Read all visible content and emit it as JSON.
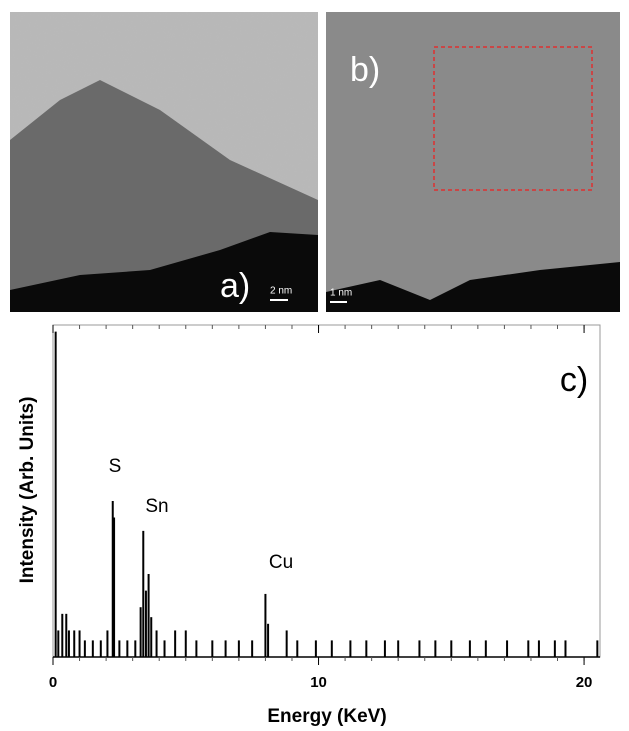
{
  "panels": {
    "a": {
      "label": "a)",
      "scale": "2 nm"
    },
    "b": {
      "label": "b)",
      "scale": "1 nm"
    }
  },
  "chart_data": {
    "type": "stick",
    "panel_label": "c)",
    "x_label": "Energy (KeV)",
    "y_label": "Intensity (Arb. Units)",
    "xlim": [
      0,
      20.6
    ],
    "ylim": [
      0,
      100
    ],
    "xticks": [
      0,
      10,
      20
    ],
    "color": "#000000",
    "annotations": [
      "S",
      "Sn",
      "Cu"
    ],
    "x": [
      0.1,
      0.2,
      0.35,
      0.5,
      0.6,
      0.8,
      1.0,
      1.2,
      1.5,
      1.8,
      2.05,
      2.25,
      2.3,
      2.5,
      2.8,
      3.1,
      3.3,
      3.4,
      3.5,
      3.6,
      3.7,
      3.9,
      4.2,
      4.6,
      5.0,
      5.4,
      6.0,
      6.5,
      7.0,
      7.5,
      8.0,
      8.1,
      8.8,
      9.2,
      9.9,
      10.5,
      11.2,
      11.8,
      12.5,
      13.0,
      13.8,
      14.4,
      15.0,
      15.7,
      16.3,
      17.1,
      17.9,
      18.3,
      18.9,
      19.3,
      20.5
    ],
    "values": [
      98,
      8,
      13,
      13,
      8,
      8,
      8,
      5,
      5,
      5,
      8,
      47,
      42,
      5,
      5,
      5,
      15,
      38,
      20,
      25,
      12,
      8,
      5,
      8,
      8,
      5,
      5,
      5,
      5,
      5,
      19,
      10,
      8,
      5,
      5,
      5,
      5,
      5,
      5,
      5,
      5,
      5,
      5,
      5,
      5,
      5,
      5,
      5,
      5,
      5,
      5
    ]
  }
}
